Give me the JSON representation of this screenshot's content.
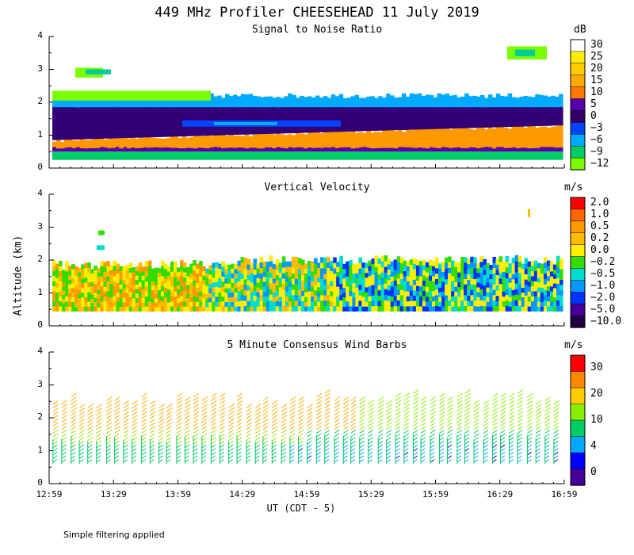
{
  "title": "449 MHz Profiler CHEESEHEAD 11 July 2019",
  "y_axis_label": "Altitude (km)",
  "x_axis_label": "UT  (CDT - 5)",
  "x_ticks": [
    "12:59",
    "13:29",
    "13:59",
    "14:29",
    "14:59",
    "15:29",
    "15:59",
    "16:29",
    "16:59"
  ],
  "footnote": "Simple filtering applied",
  "colors": {
    "green_lt": "#7cfc00",
    "green": "#00dd44",
    "teal": "#00cc99",
    "cyan": "#00ccff",
    "blue": "#0044ff",
    "darkblue": "#0000bb",
    "purple": "#5500aa",
    "darkpurple": "#330066",
    "yellow": "#ffee00",
    "gold": "#ffcc00",
    "orange": "#ffaa00",
    "dkorange": "#ff7700",
    "red": "#ff0000"
  },
  "chart_data": [
    {
      "type": "heatmap",
      "title": "Signal to Noise Ratio",
      "unit": "dB",
      "ylim": [
        0,
        4
      ],
      "y_ticks": [
        "0",
        "1",
        "2",
        "3",
        "4"
      ],
      "colorbar_labels": [
        "30",
        "25",
        "20",
        "15",
        "10",
        "5",
        "0",
        "−3",
        "−6",
        "−9",
        "−12"
      ],
      "colorbar_colors": [
        "#ffffff",
        "#ffee00",
        "#ffcc00",
        "#ffaa00",
        "#ff7700",
        "#5500aa",
        "#330066",
        "#0044ff",
        "#00aaff",
        "#00cc66",
        "#7cfc00"
      ],
      "layers": [
        {
          "alt_bottom": 0.25,
          "alt_top": 0.5,
          "description_color": "green/cyan",
          "color": "#00cc66"
        },
        {
          "alt_bottom": 0.5,
          "alt_top": 0.65,
          "description_color": "purple",
          "color": "#5500aa"
        },
        {
          "alt_bottom": 0.65,
          "alt_top": 0.9,
          "description_color": "orange",
          "color": "#ff9900"
        },
        {
          "alt_bottom": 0.9,
          "alt_top": 1.9,
          "description_color": "dark purple",
          "color": "#330077"
        },
        {
          "alt_bottom": 1.9,
          "alt_top": 2.25,
          "description_color": "blue/green edge",
          "color": "#00aaff"
        }
      ]
    },
    {
      "type": "heatmap",
      "title": "Vertical Velocity",
      "unit": "m/s",
      "ylim": [
        0,
        4
      ],
      "y_ticks": [
        "0",
        "1",
        "2",
        "3",
        "4"
      ],
      "colorbar_labels": [
        "2.0",
        "1.0",
        "0.5",
        "0.2",
        "0.0",
        "−0.2",
        "−0.5",
        "−1.0",
        "−2.0",
        "−5.0",
        "−10.0"
      ],
      "colorbar_colors": [
        "#ff0000",
        "#ff6600",
        "#ff9900",
        "#ffbb00",
        "#ffee00",
        "#33dd00",
        "#00ddcc",
        "#0099ff",
        "#0033ff",
        "#440099",
        "#220044"
      ],
      "data_alt_range": [
        0.45,
        2.2
      ]
    },
    {
      "type": "wind_barbs",
      "title": "5 Minute Consensus Wind Barbs",
      "unit": "m/s",
      "ylim": [
        0,
        4
      ],
      "y_ticks": [
        "0",
        "1",
        "2",
        "3",
        "4"
      ],
      "colorbar_labels": [
        "30",
        "20",
        "10",
        "4",
        "0"
      ],
      "colorbar_colors": [
        "#ff0000",
        "#ff8800",
        "#ffcc00",
        "#88ee00",
        "#00cc66",
        "#00aaff",
        "#0000ff",
        "#440099"
      ],
      "barb_alt_range": [
        0.6,
        2.9
      ]
    }
  ]
}
